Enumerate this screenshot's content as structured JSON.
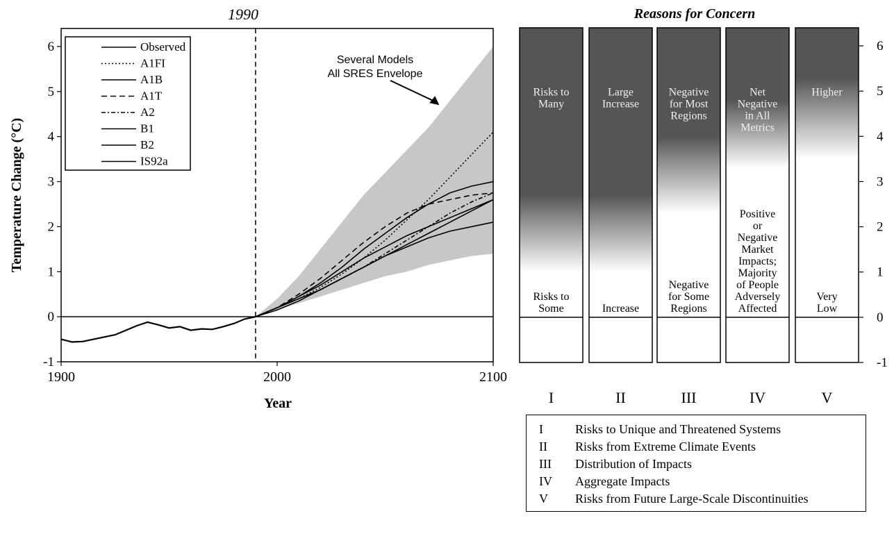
{
  "chart_data": [
    {
      "type": "line",
      "title": "1990",
      "xlabel": "Year",
      "ylabel": "Temperature Change (°C)",
      "xlim": [
        1900,
        2100
      ],
      "ylim": [
        -1,
        6.4
      ],
      "x_ticks": [
        "1900",
        "2000",
        "2100"
      ],
      "y_ticks": [
        "-1",
        "0",
        "1",
        "2",
        "3",
        "4",
        "5",
        "6"
      ],
      "reference_line_year": 1990,
      "annotation": {
        "lines": [
          "Several Models",
          "All SRES Envelope"
        ],
        "points_to": [
          2075,
          4.7
        ]
      },
      "legend": [
        "Observed",
        "A1FI",
        "A1B",
        "A1T",
        "A2",
        "B1",
        "B2",
        "IS92a"
      ],
      "legend_placement": "top-left",
      "envelope": {
        "name": "Several Models All SRES Envelope",
        "x": [
          1990,
          2000,
          2010,
          2020,
          2030,
          2040,
          2050,
          2060,
          2070,
          2080,
          2090,
          2100
        ],
        "upper": [
          0.0,
          0.4,
          0.9,
          1.5,
          2.1,
          2.7,
          3.2,
          3.7,
          4.2,
          4.8,
          5.4,
          6.0
        ],
        "lower": [
          0.0,
          0.15,
          0.3,
          0.45,
          0.6,
          0.75,
          0.9,
          1.0,
          1.15,
          1.25,
          1.35,
          1.4
        ]
      },
      "series": [
        {
          "name": "Observed",
          "style": "solid",
          "x": [
            1900,
            1905,
            1910,
            1915,
            1920,
            1925,
            1930,
            1935,
            1940,
            1945,
            1950,
            1955,
            1960,
            1965,
            1970,
            1975,
            1980,
            1985,
            1990
          ],
          "values": [
            -0.5,
            -0.56,
            -0.55,
            -0.5,
            -0.45,
            -0.4,
            -0.3,
            -0.2,
            -0.12,
            -0.18,
            -0.25,
            -0.22,
            -0.3,
            -0.27,
            -0.28,
            -0.22,
            -0.15,
            -0.05,
            0.0
          ]
        },
        {
          "name": "A1FI",
          "style": "dotted",
          "x": [
            1990,
            2000,
            2010,
            2020,
            2030,
            2040,
            2050,
            2060,
            2070,
            2080,
            2090,
            2100
          ],
          "values": [
            0.0,
            0.2,
            0.4,
            0.65,
            0.95,
            1.3,
            1.7,
            2.15,
            2.6,
            3.1,
            3.6,
            4.1
          ]
        },
        {
          "name": "A1B",
          "style": "solid",
          "x": [
            1990,
            2000,
            2010,
            2020,
            2030,
            2040,
            2050,
            2060,
            2070,
            2080,
            2090,
            2100
          ],
          "values": [
            0.0,
            0.2,
            0.45,
            0.75,
            1.1,
            1.5,
            1.85,
            2.2,
            2.5,
            2.75,
            2.9,
            3.0
          ]
        },
        {
          "name": "A1T",
          "style": "dashed",
          "x": [
            1990,
            2000,
            2010,
            2020,
            2030,
            2040,
            2050,
            2060,
            2070,
            2080,
            2090,
            2100
          ],
          "values": [
            0.0,
            0.2,
            0.5,
            0.85,
            1.25,
            1.65,
            2.0,
            2.3,
            2.5,
            2.6,
            2.7,
            2.75
          ]
        },
        {
          "name": "A2",
          "style": "dash-dot",
          "x": [
            1990,
            2000,
            2010,
            2020,
            2030,
            2040,
            2050,
            2060,
            2070,
            2080,
            2090,
            2100
          ],
          "values": [
            0.0,
            0.2,
            0.4,
            0.6,
            0.85,
            1.1,
            1.4,
            1.7,
            2.0,
            2.3,
            2.55,
            2.75
          ]
        },
        {
          "name": "B1",
          "style": "solid",
          "x": [
            1990,
            2000,
            2010,
            2020,
            2030,
            2040,
            2050,
            2060,
            2070,
            2080,
            2090,
            2100
          ],
          "values": [
            0.0,
            0.2,
            0.4,
            0.6,
            0.85,
            1.1,
            1.35,
            1.55,
            1.75,
            1.9,
            2.0,
            2.1
          ]
        },
        {
          "name": "B2",
          "style": "solid",
          "x": [
            1990,
            2000,
            2010,
            2020,
            2030,
            2040,
            2050,
            2060,
            2070,
            2080,
            2090,
            2100
          ],
          "values": [
            0.0,
            0.2,
            0.45,
            0.7,
            1.0,
            1.3,
            1.55,
            1.8,
            2.0,
            2.2,
            2.4,
            2.6
          ]
        },
        {
          "name": "IS92a",
          "style": "solid",
          "x": [
            1990,
            2000,
            2010,
            2020,
            2030,
            2040,
            2050,
            2060,
            2070,
            2080,
            2090,
            2100
          ],
          "values": [
            0.0,
            0.15,
            0.35,
            0.6,
            0.85,
            1.1,
            1.35,
            1.6,
            1.85,
            2.1,
            2.35,
            2.6
          ]
        }
      ]
    },
    {
      "type": "heatmap",
      "title": "Reasons for Concern",
      "y_ticks": [
        "-1",
        "0",
        "1",
        "2",
        "3",
        "4",
        "5",
        "6"
      ],
      "ylim": [
        -1,
        6.4
      ],
      "columns": [
        {
          "id": "I",
          "low_label": [
            "Risks to",
            "Some"
          ],
          "high_label": [
            "Risks to",
            "Many"
          ],
          "fade_range": [
            1.0,
            2.7
          ],
          "high_label_y": 4.9
        },
        {
          "id": "II",
          "low_label": [
            "Increase"
          ],
          "high_label": [
            "Large",
            "Increase"
          ],
          "fade_range": [
            1.0,
            2.7
          ],
          "high_label_y": 4.9
        },
        {
          "id": "III",
          "low_label": [
            "Negative",
            "for Some",
            "Regions"
          ],
          "high_label": [
            "Negative",
            "for Most",
            "Regions"
          ],
          "fade_range": [
            2.3,
            4.0
          ],
          "high_label_y": 4.9
        },
        {
          "id": "IV",
          "low_label": [
            "Positive",
            "or",
            "Negative",
            "Market",
            "Impacts;",
            "Majority",
            "of People",
            "Adversely",
            "Affected"
          ],
          "high_label": [
            "Net",
            "Negative",
            "in All",
            "Metrics"
          ],
          "fade_range": [
            3.3,
            4.8
          ],
          "high_label_y": 4.9
        },
        {
          "id": "V",
          "low_label": [
            "Very",
            "Low"
          ],
          "high_label": [
            "Higher"
          ],
          "fade_range": [
            3.5,
            5.3
          ],
          "high_label_y": 4.9
        }
      ]
    }
  ],
  "legend_table": [
    {
      "id": "I",
      "text": "Risks to Unique and Threatened Systems"
    },
    {
      "id": "II",
      "text": "Risks from Extreme Climate Events"
    },
    {
      "id": "III",
      "text": "Distribution of Impacts"
    },
    {
      "id": "IV",
      "text": "Aggregate Impacts"
    },
    {
      "id": "V",
      "text": "Risks from Future Large-Scale Discontinuities"
    }
  ],
  "colors": {
    "dark": "#555555",
    "light": "#ffffff",
    "envelope": "#bdbdbd",
    "line": "#000000"
  }
}
